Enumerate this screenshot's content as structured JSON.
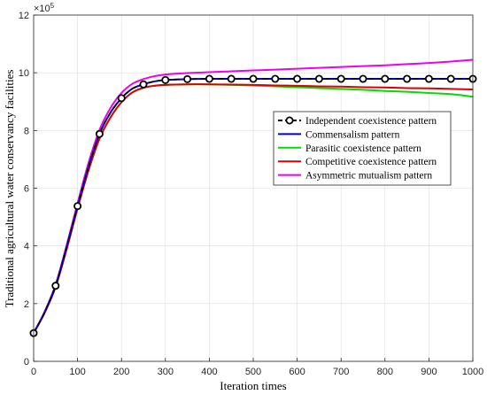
{
  "chart_data": {
    "type": "line",
    "title": "",
    "xlabel": "Iteration times",
    "ylabel": "Traditional agricultural water conservancy facilities",
    "xlim": [
      0,
      1000
    ],
    "ylim": [
      0,
      12
    ],
    "y_multiplier": "×10",
    "y_exponent": "5",
    "x_ticks": [
      "0",
      "100",
      "200",
      "300",
      "400",
      "500",
      "600",
      "700",
      "800",
      "900",
      "1000"
    ],
    "y_ticks": [
      "0",
      "2",
      "4",
      "6",
      "8",
      "10",
      "12"
    ],
    "grid": true,
    "legend_position": "right-middle",
    "x": [
      0,
      25,
      50,
      75,
      100,
      125,
      150,
      175,
      200,
      225,
      250,
      275,
      300,
      350,
      400,
      450,
      500,
      550,
      600,
      650,
      700,
      750,
      800,
      850,
      900,
      950,
      1000
    ],
    "series": [
      {
        "name": "Independent coexistence pattern",
        "color": "#000000",
        "style": "dashed-circle-markers",
        "marker_x": [
          0,
          50,
          100,
          150,
          200,
          250,
          300,
          350,
          400,
          450,
          500,
          550,
          600,
          650,
          700,
          750,
          800,
          850,
          900,
          950,
          1000
        ],
        "values": [
          0.98,
          1.7,
          2.62,
          3.95,
          5.38,
          6.75,
          7.88,
          8.62,
          9.12,
          9.45,
          9.6,
          9.7,
          9.75,
          9.78,
          9.79,
          9.79,
          9.79,
          9.79,
          9.79,
          9.79,
          9.79,
          9.79,
          9.79,
          9.79,
          9.79,
          9.79,
          9.79
        ]
      },
      {
        "name": "Commensalism  pattern",
        "color": "#0000cc",
        "style": "solid",
        "values": [
          0.98,
          1.7,
          2.62,
          3.95,
          5.38,
          6.75,
          7.88,
          8.62,
          9.12,
          9.45,
          9.6,
          9.7,
          9.75,
          9.78,
          9.79,
          9.79,
          9.79,
          9.79,
          9.79,
          9.79,
          9.79,
          9.79,
          9.79,
          9.79,
          9.79,
          9.79,
          9.79
        ]
      },
      {
        "name": "Parasitic coexistence pattern",
        "color": "#00dd00",
        "style": "solid",
        "values": [
          0.98,
          1.68,
          2.58,
          3.88,
          5.3,
          6.62,
          7.72,
          8.45,
          8.98,
          9.32,
          9.48,
          9.55,
          9.58,
          9.6,
          9.6,
          9.58,
          9.56,
          9.53,
          9.5,
          9.47,
          9.44,
          9.41,
          9.37,
          9.34,
          9.3,
          9.26,
          9.17
        ]
      },
      {
        "name": "Competitive coexistence pattern",
        "color": "#dd0000",
        "style": "solid",
        "values": [
          0.98,
          1.68,
          2.58,
          3.88,
          5.3,
          6.62,
          7.72,
          8.45,
          8.98,
          9.32,
          9.48,
          9.55,
          9.58,
          9.6,
          9.6,
          9.59,
          9.58,
          9.56,
          9.55,
          9.53,
          9.52,
          9.5,
          9.49,
          9.47,
          9.46,
          9.44,
          9.42
        ]
      },
      {
        "name": "Asymmetric mutualism pattern",
        "color": "#ee00ee",
        "style": "solid",
        "values": [
          0.98,
          1.72,
          2.66,
          4.02,
          5.48,
          6.88,
          8.02,
          8.78,
          9.3,
          9.62,
          9.78,
          9.88,
          9.94,
          9.99,
          10.02,
          10.05,
          10.08,
          10.11,
          10.14,
          10.17,
          10.2,
          10.23,
          10.26,
          10.3,
          10.34,
          10.39,
          10.45
        ]
      }
    ]
  }
}
